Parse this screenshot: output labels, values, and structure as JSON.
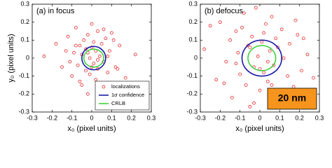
{
  "chart_data": [
    {
      "type": "scatter",
      "title": "(a) in focus",
      "xlabel": "x₀ (pixel units)",
      "ylabel": "y₀ (pixel units)",
      "xlim": [
        -0.3,
        0.3
      ],
      "ylim": [
        -0.3,
        0.3
      ],
      "xticks": [
        -0.3,
        -0.2,
        -0.1,
        0,
        0.1,
        0.2,
        0.3
      ],
      "yticks": [
        -0.3,
        -0.2,
        -0.1,
        0,
        0.1,
        0.2,
        0.3
      ],
      "legend": "lower right",
      "series": [
        {
          "name": "localizations",
          "color": "#e8262a",
          "x": [
            -0.24,
            -0.18,
            -0.15,
            -0.12,
            -0.1,
            -0.09,
            -0.08,
            -0.07,
            -0.06,
            -0.05,
            -0.05,
            -0.04,
            -0.03,
            -0.03,
            -0.02,
            -0.02,
            -0.01,
            -0.01,
            0,
            0,
            0.01,
            0.01,
            0.02,
            0.02,
            0.03,
            0.03,
            0.04,
            0.04,
            0.05,
            0.06,
            0.07,
            0.08,
            0.09,
            0.1,
            0.12,
            0.14,
            0.17,
            0.22,
            -0.11,
            0.11,
            -0.06,
            0.06,
            -0.02,
            0.03,
            0.0,
            -0.08,
            0.08,
            -0.13,
            0.13,
            0.05
          ],
          "values": [
            0.01,
            0.08,
            -0.05,
            0.12,
            -0.1,
            0.03,
            0.17,
            -0.04,
            0.07,
            -0.15,
            0.02,
            0.1,
            -0.07,
            0.05,
            -0.2,
            0.13,
            0.0,
            -0.09,
            0.06,
            0.19,
            -0.03,
            0.09,
            -0.12,
            0.04,
            0.15,
            -0.06,
            0.01,
            -0.17,
            0.08,
            -0.02,
            0.11,
            -0.08,
            0.04,
            0.14,
            -0.05,
            0.07,
            -0.11,
            0.02,
            -0.02,
            0.1,
            -0.13,
            0.16,
            0.03,
            -0.01,
            -0.05,
            0.07,
            0.01,
            0.04,
            -0.06,
            -0.14
          ]
        }
      ],
      "ellipses": [
        {
          "name": "1σ confidence",
          "color": "#1a1aa8",
          "cx": 0.01,
          "cy": 0.0,
          "rx": 0.06,
          "ry": 0.065
        },
        {
          "name": "CRLB",
          "color": "#40d040",
          "cx": 0.01,
          "cy": 0.0,
          "rx": 0.05,
          "ry": 0.05
        }
      ]
    },
    {
      "type": "scatter",
      "title": "(b) defocus",
      "xlabel": "x₀ (pixel units)",
      "xlim": [
        -0.3,
        0.3
      ],
      "ylim": [
        -0.3,
        0.3
      ],
      "xticks": [
        -0.3,
        -0.2,
        -0.1,
        0,
        0.1,
        0.2,
        0.3
      ],
      "yticks": [
        -0.3,
        -0.2,
        -0.1,
        0,
        0.1,
        0.2,
        0.3
      ],
      "annotation": "20 nm",
      "series": [
        {
          "color": "#e8262a",
          "x": [
            -0.28,
            -0.22,
            -0.2,
            -0.17,
            -0.15,
            -0.14,
            -0.12,
            -0.11,
            -0.1,
            -0.08,
            -0.07,
            -0.06,
            -0.05,
            -0.04,
            -0.03,
            -0.02,
            -0.01,
            0,
            0.01,
            0.02,
            0.03,
            0.04,
            0.05,
            0.06,
            0.07,
            0.08,
            0.1,
            0.11,
            0.12,
            0.14,
            0.15,
            0.17,
            0.19,
            0.21,
            0.24,
            0.27,
            -0.18,
            0.18,
            -0.09,
            0.09,
            -0.03,
            0.02,
            0.0,
            -0.12,
            0.13,
            -0.25,
            0.22,
            0.06,
            -0.05,
            0.04
          ],
          "values": [
            0.05,
            -0.12,
            0.2,
            -0.02,
            0.1,
            -0.22,
            0.15,
            0.03,
            -0.09,
            0.25,
            -0.15,
            0.07,
            -0.27,
            0.12,
            -0.05,
            0.28,
            0.01,
            -0.18,
            0.09,
            -0.08,
            0.19,
            -0.13,
            0.04,
            0.23,
            -0.04,
            0.11,
            -0.2,
            0.16,
            0.0,
            -0.1,
            0.08,
            -0.16,
            0.13,
            -0.07,
            0.02,
            -0.11,
            -0.14,
            0.21,
            0.17,
            0.06,
            -0.25,
            0.14,
            -0.06,
            -0.03,
            -0.24,
            0.18,
            0.11,
            -0.15,
            0.06,
            -0.02
          ]
        }
      ],
      "ellipses": [
        {
          "color": "#1a1aa8",
          "cx": 0.01,
          "cy": 0.0,
          "rx": 0.1,
          "ry": 0.1
        },
        {
          "color": "#40d040",
          "cx": 0.01,
          "cy": 0.0,
          "rx": 0.07,
          "ry": 0.07
        }
      ]
    }
  ]
}
